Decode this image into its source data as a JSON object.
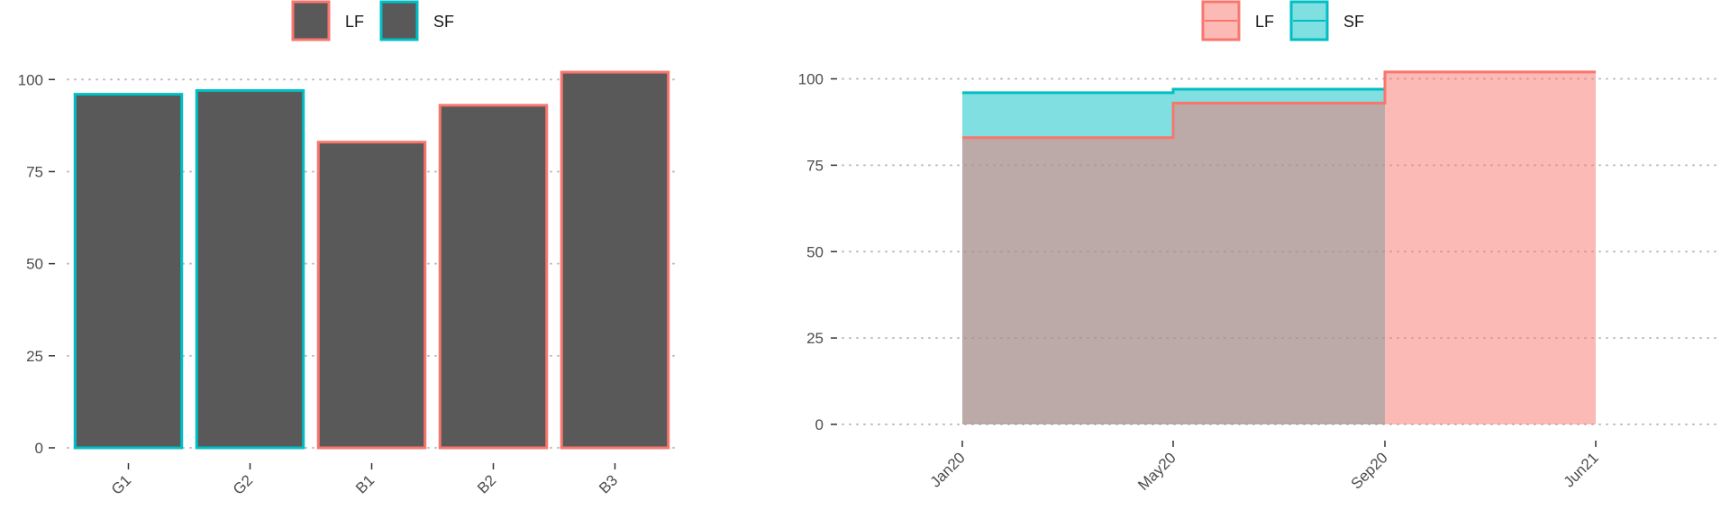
{
  "colors": {
    "lf": "#f8766d",
    "sf": "#00bfc4",
    "bar_fill": "#595959",
    "grid": "#bdbdbd",
    "axis_text": "#4d4d4d",
    "lf_fill": "#f8766d",
    "sf_fill": "#00bfc4",
    "overlap_fill": "#80bdbc"
  },
  "chart_data": [
    {
      "type": "bar",
      "categories": [
        "G1",
        "G2",
        "B1",
        "B2",
        "B3"
      ],
      "values": [
        96,
        97,
        83,
        93,
        102
      ],
      "groups": [
        "SF",
        "SF",
        "LF",
        "LF",
        "LF"
      ],
      "legend": [
        "LF",
        "SF"
      ],
      "legend_position": "top",
      "ylim": [
        0,
        103
      ],
      "yticks": [
        0,
        25,
        50,
        75,
        100
      ],
      "grid": "horizontal dotted",
      "title": "",
      "xlabel": "",
      "ylabel": ""
    },
    {
      "type": "area",
      "step": true,
      "x_ticks": [
        "Jan20",
        "May20",
        "Sep20",
        "Jun21"
      ],
      "series": [
        {
          "name": "LF",
          "x": [
            "Jan20",
            "May20",
            "Sep20",
            "Jun21"
          ],
          "values": [
            83,
            93,
            102,
            102
          ]
        },
        {
          "name": "SF",
          "x": [
            "Jan20",
            "May20",
            "Sep20"
          ],
          "values": [
            96,
            97,
            97
          ]
        }
      ],
      "legend": [
        "LF",
        "SF"
      ],
      "legend_position": "top",
      "ylim": [
        0,
        103
      ],
      "yticks": [
        0,
        25,
        50,
        75,
        100
      ],
      "grid": "horizontal dotted",
      "title": "",
      "xlabel": "",
      "ylabel": ""
    }
  ]
}
